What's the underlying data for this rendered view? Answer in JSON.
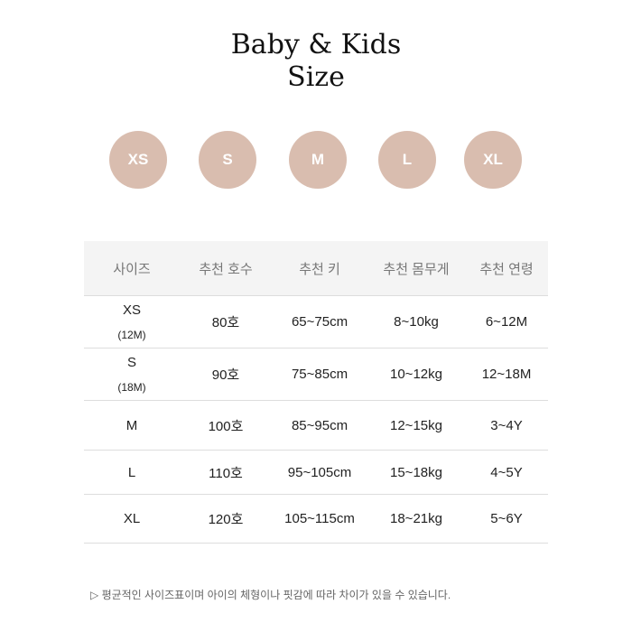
{
  "title_line1": "Baby & Kids",
  "title_line2": "Size",
  "accent_color": "#d9bdaf",
  "sizes": [
    "XS",
    "S",
    "M",
    "L",
    "XL"
  ],
  "table": {
    "headers": [
      "사이즈",
      "추천 호수",
      "추천 키",
      "추천 몸무게",
      "추천 연령"
    ],
    "rows": [
      {
        "size": "XS",
        "sub": "(12M)",
        "cells": [
          "80호",
          "65~75cm",
          "8~10kg",
          "6~12M"
        ]
      },
      {
        "size": "S",
        "sub": "(18M)",
        "cells": [
          "90호",
          "75~85cm",
          "10~12kg",
          "12~18M"
        ]
      },
      {
        "size": "M",
        "sub": "",
        "cells": [
          "100호",
          "85~95cm",
          "12~15kg",
          "3~4Y"
        ]
      },
      {
        "size": "L",
        "sub": "",
        "cells": [
          "110호",
          "95~105cm",
          "15~18kg",
          "4~5Y"
        ]
      },
      {
        "size": "XL",
        "sub": "",
        "cells": [
          "120호",
          "105~115cm",
          "18~21kg",
          "5~6Y"
        ]
      }
    ]
  },
  "note": "▷ 평균적인 사이즈표이며 아이의 체형이나 핏감에 따라 차이가 있을 수 있습니다."
}
